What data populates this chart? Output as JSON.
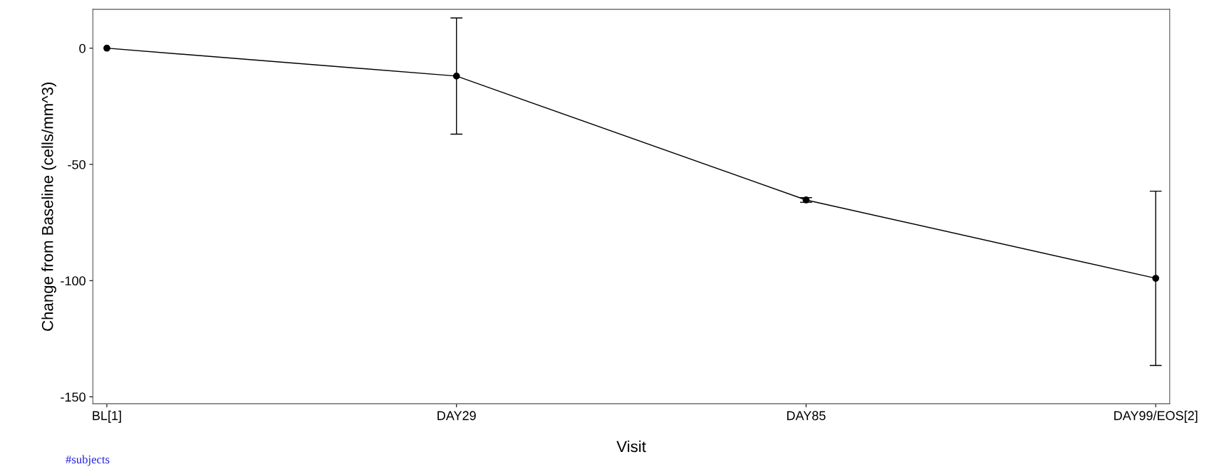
{
  "chart_data": {
    "type": "line",
    "xlabel": "Visit",
    "ylabel": "Change from Baseline (cells/mm^3)",
    "categories": [
      "BL[1]",
      "DAY29",
      "DAY85",
      "DAY99/EOS[2]"
    ],
    "series": [
      {
        "color": "#000000",
        "values": [
          0,
          -12,
          -65.3,
          -99
        ],
        "errors": [
          null,
          25,
          1,
          37.5
        ]
      }
    ],
    "ylim": [
      -153,
      16.7
    ],
    "yticks": [
      {
        "value": 0,
        "label": "0"
      },
      {
        "value": -50,
        "label": "-50"
      },
      {
        "value": -100,
        "label": "-100"
      },
      {
        "value": -150,
        "label": "-150"
      }
    ],
    "marker": "circle",
    "line_style": "solid",
    "grid": false,
    "legend": false,
    "annotations": [
      "#subjects"
    ]
  }
}
